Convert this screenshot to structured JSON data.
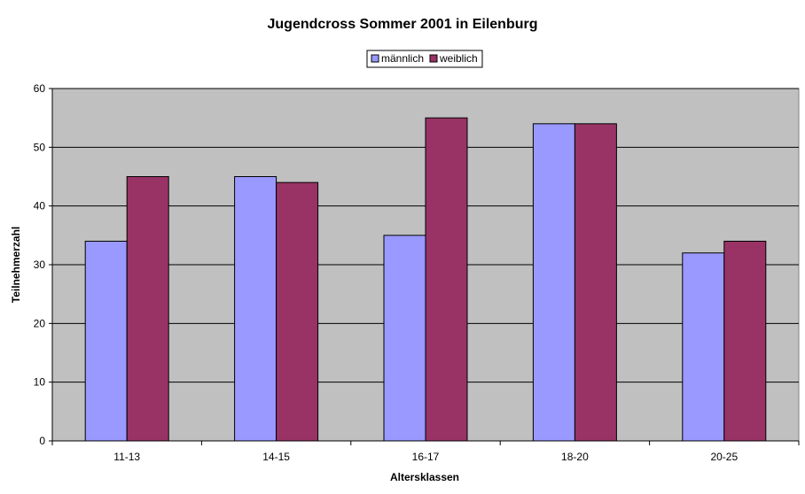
{
  "chart_data": {
    "type": "bar",
    "title": "Jugendcross Sommer 2001 in Eilenburg",
    "xlabel": "Altersklassen",
    "ylabel": "Teilnehmerzahl",
    "categories": [
      "11-13",
      "14-15",
      "16-17",
      "18-20",
      "20-25"
    ],
    "series": [
      {
        "name": "männlich",
        "values": [
          34,
          45,
          35,
          54,
          32
        ],
        "color": "#9999ff"
      },
      {
        "name": "weiblich",
        "values": [
          45,
          44,
          55,
          54,
          34
        ],
        "color": "#993366"
      }
    ],
    "ylim": [
      0,
      60
    ],
    "yticks": [
      0,
      10,
      20,
      30,
      40,
      50,
      60
    ],
    "grid": true,
    "legend_position": "top",
    "plot_background": "#c0c0c0"
  }
}
